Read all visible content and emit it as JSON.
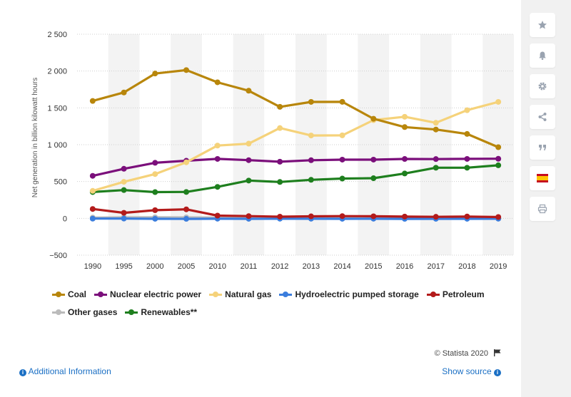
{
  "chart_data": {
    "type": "line",
    "ylabel": "Net generation in billion kilowatt hours",
    "xlabel": "",
    "ylim": [
      -500,
      2500
    ],
    "yticks": [
      -500,
      0,
      500,
      1000,
      1500,
      2000,
      2500
    ],
    "ytick_labels": [
      "−500",
      "0",
      "500",
      "1 000",
      "1 500",
      "2 000",
      "2 500"
    ],
    "categories": [
      "1990",
      "1995",
      "2000",
      "2005",
      "2010",
      "2011",
      "2012",
      "2013",
      "2014",
      "2015",
      "2016",
      "2017",
      "2018",
      "2019"
    ],
    "grid": true,
    "legend_position": "bottom",
    "series": [
      {
        "name": "Coal",
        "color": "#b8860b",
        "values": [
          1594,
          1709,
          1966,
          2013,
          1847,
          1733,
          1514,
          1581,
          1582,
          1352,
          1239,
          1206,
          1146,
          966
        ]
      },
      {
        "name": "Nuclear electric power",
        "color": "#7b0f7b",
        "values": [
          577,
          673,
          754,
          782,
          807,
          790,
          769,
          789,
          797,
          797,
          806,
          805,
          807,
          809
        ]
      },
      {
        "name": "Natural gas",
        "color": "#f5d27a",
        "values": [
          373,
          496,
          601,
          761,
          988,
          1014,
          1226,
          1125,
          1127,
          1334,
          1379,
          1297,
          1468,
          1581
        ]
      },
      {
        "name": "Hydroelectric pumped storage",
        "color": "#3b7ddd",
        "values": [
          -4,
          -3,
          -6,
          -7,
          -5,
          -6,
          -5,
          -5,
          -6,
          -5,
          -7,
          -6,
          -6,
          -5
        ]
      },
      {
        "name": "Petroleum",
        "color": "#b31b1b",
        "values": [
          127,
          75,
          111,
          122,
          37,
          30,
          23,
          27,
          30,
          28,
          24,
          21,
          25,
          18
        ]
      },
      {
        "name": "Other gases",
        "color": "#bbbbbb",
        "values": [
          10,
          14,
          14,
          13,
          11,
          11,
          11,
          12,
          12,
          13,
          12,
          13,
          13,
          12
        ]
      },
      {
        "name": "Renewables**",
        "color": "#1e7f1e",
        "values": [
          357,
          384,
          356,
          358,
          427,
          513,
          494,
          523,
          540,
          545,
          609,
          687,
          687,
          720
        ]
      }
    ]
  },
  "legend_rows": [
    [
      0,
      1,
      2,
      3,
      4
    ],
    [
      5,
      6
    ]
  ],
  "sidebar": {
    "icons": [
      "star-icon",
      "bell-icon",
      "gear-icon",
      "share-icon",
      "quote-icon",
      "flag-icon",
      "print-icon"
    ]
  },
  "footer": {
    "credit": "© Statista 2020",
    "additional_info": "Additional Information",
    "show_source": "Show source"
  }
}
